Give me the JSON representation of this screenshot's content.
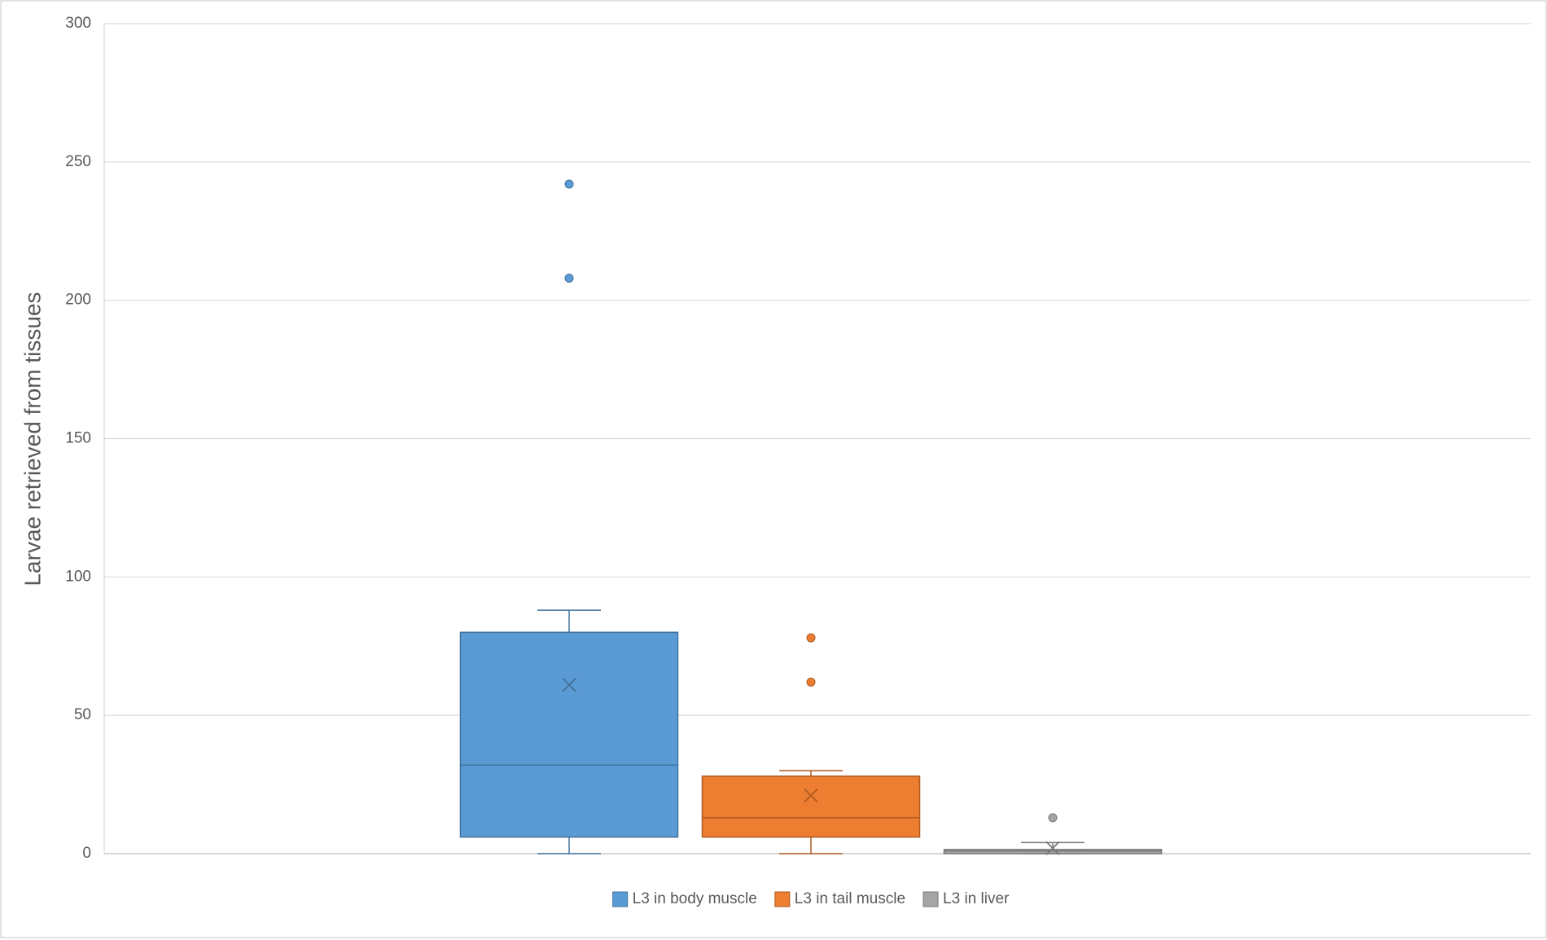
{
  "chart_data": {
    "type": "box",
    "y_label": "Larvae retrieved from tissues",
    "ylim": [
      0,
      300
    ],
    "yticks": [
      0,
      50,
      100,
      150,
      200,
      250,
      300
    ],
    "grid": true,
    "legend": "bottom",
    "series": [
      {
        "name": "L3 in body muscle",
        "color": "#5b9bd5",
        "edge_color": "#41719c",
        "low": 0,
        "q1": 6,
        "median": 32,
        "q3": 80,
        "high": 88,
        "mean": 61,
        "outliers": [
          242,
          208
        ]
      },
      {
        "name": "L3 in tail muscle",
        "color": "#ed7d31",
        "edge_color": "#ae5a21",
        "low": 0,
        "q1": 6,
        "median": 13,
        "q3": 28,
        "high": 30,
        "mean": 21,
        "outliers": [
          78,
          62
        ]
      },
      {
        "name": "L3 in liver",
        "color": "#a5a5a5",
        "edge_color": "#787878",
        "low": 0,
        "q1": 0,
        "median": 1,
        "q3": 1.5,
        "high": 4,
        "mean": 2,
        "outliers": [
          13
        ]
      }
    ]
  }
}
